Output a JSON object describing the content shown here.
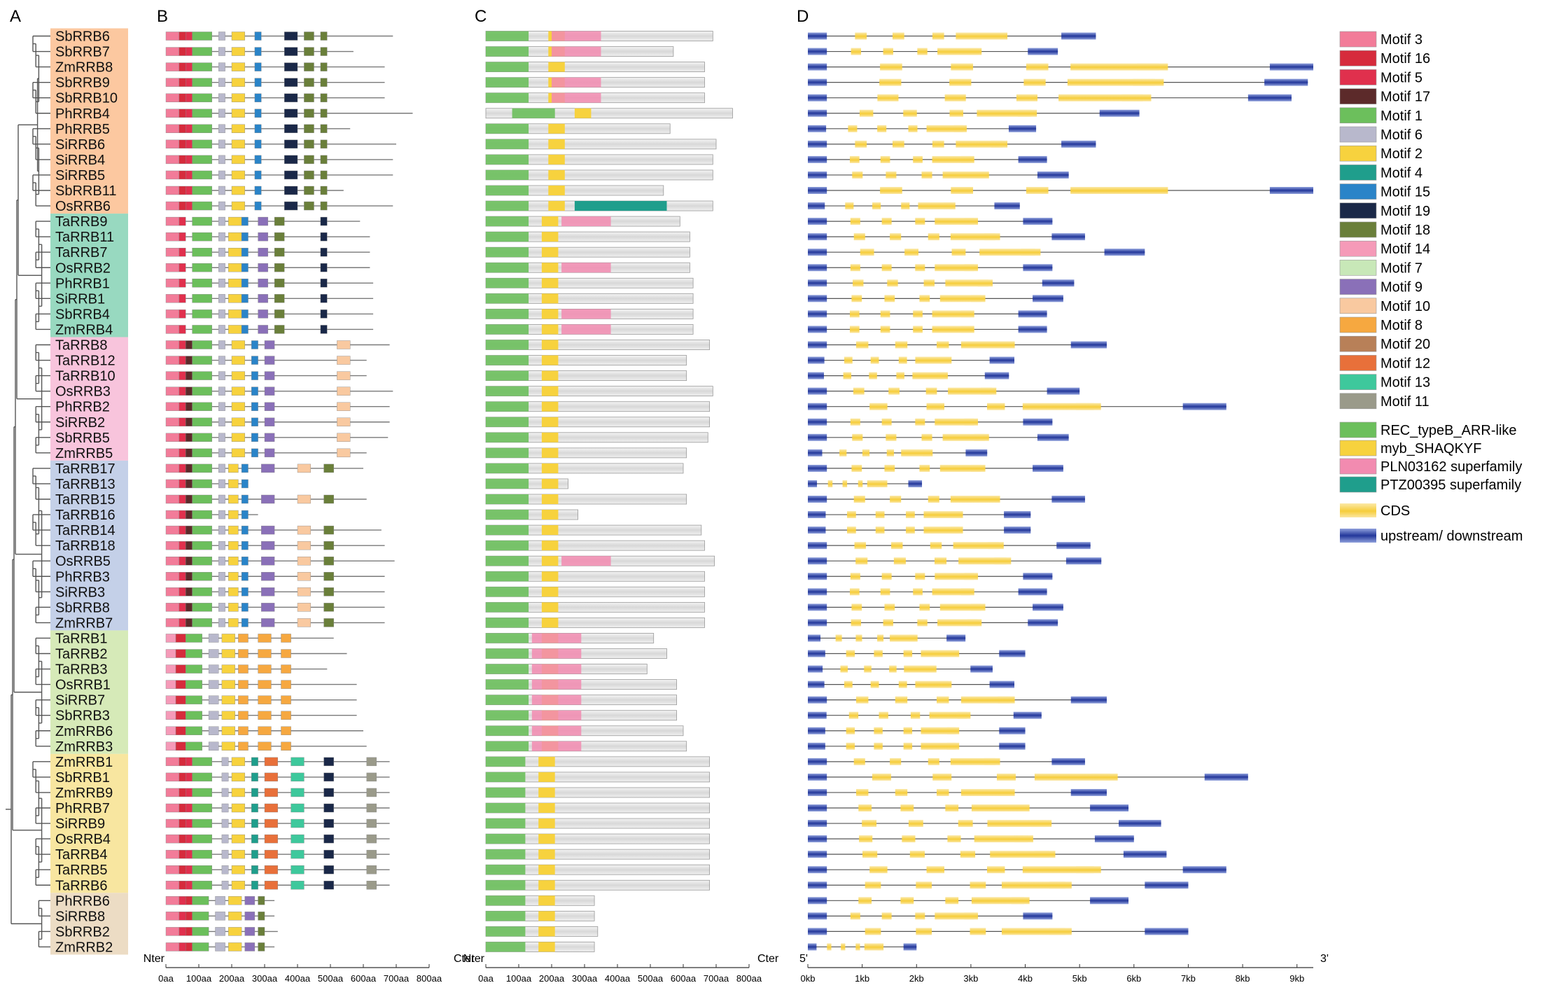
{
  "panels": {
    "A": "A",
    "B": "B",
    "C": "C",
    "D": "D"
  },
  "genes": [
    "SbRRB6",
    "SbRRB7",
    "ZmRRB8",
    "SbRRB9",
    "SbRRB10",
    "PhRRB4",
    "PhRRB5",
    "SiRRB6",
    "SiRRB4",
    "SiRRB5",
    "SbRRB11",
    "OsRRB6",
    "TaRRB9",
    "TaRRB11",
    "TaRRB7",
    "OsRRB2",
    "PhRRB1",
    "SiRRB1",
    "SbRRB4",
    "ZmRRB4",
    "TaRRB8",
    "TaRRB12",
    "TaRRB10",
    "OsRRB3",
    "PhRRB2",
    "SiRRB2",
    "SbRRB5",
    "ZmRRB5",
    "TaRRB17",
    "TaRRB13",
    "TaRRB15",
    "TaRRB16",
    "TaRRB14",
    "TaRRB18",
    "OsRRB5",
    "PhRRB3",
    "SiRRB3",
    "SbRRB8",
    "ZmRRB7",
    "TaRRB1",
    "TaRRB2",
    "TaRRB3",
    "OsRRB1",
    "SiRRB7",
    "SbRRB3",
    "ZmRRB6",
    "ZmRRB3",
    "ZmRRB1",
    "SbRRB1",
    "ZmRRB9",
    "PhRRB7",
    "SiRRB9",
    "OsRRB4",
    "TaRRB4",
    "TaRRB5",
    "TaRRB6",
    "PhRRB6",
    "SiRRB8",
    "SbRRB2",
    "ZmRRB2"
  ],
  "groups": [
    {
      "start": 0,
      "end": 11,
      "color": "#fcc8a0"
    },
    {
      "start": 12,
      "end": 19,
      "color": "#98d9c0"
    },
    {
      "start": 20,
      "end": 27,
      "color": "#f8c4dc"
    },
    {
      "start": 28,
      "end": 38,
      "color": "#c4d0e8"
    },
    {
      "start": 39,
      "end": 46,
      "color": "#d6eab8"
    },
    {
      "start": 47,
      "end": 55,
      "color": "#f8e6a0"
    },
    {
      "start": 56,
      "end": 59,
      "color": "#ecdcc4"
    }
  ],
  "protein_lengths": [
    690,
    570,
    665,
    665,
    665,
    750,
    560,
    700,
    690,
    690,
    540,
    690,
    590,
    620,
    620,
    620,
    630,
    630,
    630,
    630,
    680,
    610,
    610,
    690,
    680,
    680,
    675,
    610,
    600,
    250,
    610,
    280,
    655,
    665,
    695,
    665,
    665,
    665,
    665,
    510,
    550,
    490,
    580,
    580,
    580,
    600,
    610,
    680,
    680,
    680,
    680,
    680,
    680,
    680,
    680,
    680,
    330,
    330,
    340,
    330
  ],
  "gene_lengths_kb": [
    5.3,
    4.6,
    9.3,
    9.2,
    8.9,
    6.1,
    4.2,
    5.3,
    4.4,
    4.8,
    9.3,
    3.9,
    4.5,
    5.1,
    6.2,
    4.5,
    4.9,
    4.7,
    4.4,
    4.4,
    5.5,
    3.8,
    3.7,
    5.0,
    7.7,
    4.5,
    4.8,
    3.3,
    4.7,
    2.1,
    5.1,
    4.1,
    4.1,
    5.2,
    5.4,
    4.5,
    4.4,
    4.7,
    4.6,
    2.9,
    4.0,
    3.4,
    3.8,
    5.5,
    4.3,
    4.0,
    4.0,
    5.1,
    8.1,
    5.5,
    5.9,
    6.5,
    6.0,
    6.6,
    7.7,
    7.0,
    5.9,
    4.5,
    7.0,
    2.0
  ],
  "domains": [
    {
      "name": "REC_typeB_ARR-like",
      "color": "#6cbf5c"
    },
    {
      "name": "myb_SHAQKYF",
      "color": "#f7d23e"
    },
    {
      "name": "PLN03162 superfamily",
      "color": "#f28bb0"
    },
    {
      "name": "PTZ00395 superfamily",
      "color": "#1f9e8c"
    }
  ],
  "motifs": [
    {
      "name": "Motif 3",
      "color": "#f27c99"
    },
    {
      "name": "Motif 16",
      "color": "#d62b3c"
    },
    {
      "name": "Motif 5",
      "color": "#e0304d"
    },
    {
      "name": "Motif 17",
      "color": "#5c2a2a"
    },
    {
      "name": "Motif 1",
      "color": "#6cbf5c"
    },
    {
      "name": "Motif 6",
      "color": "#b8b8cc"
    },
    {
      "name": "Motif 2",
      "color": "#f7d23e"
    },
    {
      "name": "Motif 4",
      "color": "#1f9e8c"
    },
    {
      "name": "Motif 15",
      "color": "#2a84c8"
    },
    {
      "name": "Motif 19",
      "color": "#1a2848"
    },
    {
      "name": "Motif 18",
      "color": "#6a7f3a"
    },
    {
      "name": "Motif 14",
      "color": "#f59ab8"
    },
    {
      "name": "Motif 7",
      "color": "#c8e8b8"
    },
    {
      "name": "Motif 9",
      "color": "#8a70b8"
    },
    {
      "name": "Motif 10",
      "color": "#f9c9a0"
    },
    {
      "name": "Motif 8",
      "color": "#f6a840"
    },
    {
      "name": "Motif 20",
      "color": "#b88058"
    },
    {
      "name": "Motif 12",
      "color": "#e8703a"
    },
    {
      "name": "Motif 13",
      "color": "#3ec89c"
    },
    {
      "name": "Motif 11",
      "color": "#9a9a8a"
    }
  ],
  "legend_extra": [
    {
      "name": "CDS",
      "color": "#f7d23e"
    },
    {
      "name": "upstream/ downstream",
      "color": "#2a3f9c"
    }
  ],
  "axes": {
    "nter": "Nter",
    "cter": "Cter",
    "b_ticks": [
      "0aa",
      "100aa",
      "200aa",
      "300aa",
      "400aa",
      "500aa",
      "600aa",
      "700aa",
      "800aa"
    ],
    "c_ticks": [
      "0aa",
      "100aa",
      "200aa",
      "300aa",
      "400aa",
      "500aa",
      "600aa",
      "700aa",
      "800aa"
    ],
    "five_prime": "5'",
    "three_prime": "3'",
    "d_ticks": [
      "0kb",
      "1kb",
      "2kb",
      "3kb",
      "4kb",
      "5kb",
      "6kb",
      "7kb",
      "8kb",
      "9kb"
    ]
  }
}
